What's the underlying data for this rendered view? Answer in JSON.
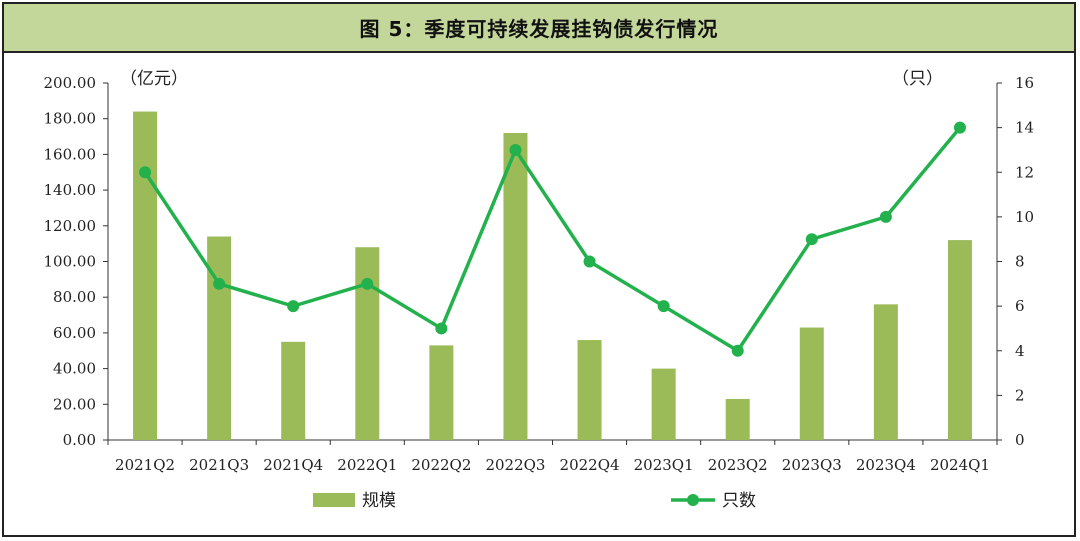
{
  "title": "图 5：季度可持续发展挂钩债发行情况",
  "chart_data": {
    "type": "bar",
    "categories": [
      "2021Q2",
      "2021Q3",
      "2021Q4",
      "2022Q1",
      "2022Q2",
      "2022Q3",
      "2022Q4",
      "2023Q1",
      "2023Q2",
      "2023Q3",
      "2023Q4",
      "2024Q1"
    ],
    "series": [
      {
        "name": "规模",
        "type": "bar",
        "axis": "left",
        "color": "#9bbb59",
        "values": [
          184,
          114,
          55,
          108,
          53,
          172,
          56,
          40,
          23,
          63,
          76,
          112
        ]
      },
      {
        "name": "只数",
        "type": "line",
        "axis": "right",
        "color": "#22b14c",
        "values": [
          12,
          7,
          6,
          7,
          5,
          13,
          8,
          6,
          4,
          9,
          10,
          14
        ]
      }
    ],
    "y_left": {
      "unit": "（亿元）",
      "ylim": [
        0,
        200
      ],
      "ticks": [
        "0.00",
        "20.00",
        "40.00",
        "60.00",
        "80.00",
        "100.00",
        "120.00",
        "140.00",
        "160.00",
        "180.00",
        "200.00"
      ]
    },
    "y_right": {
      "unit": "（只）",
      "ylim": [
        0,
        16
      ],
      "ticks": [
        "0",
        "2",
        "4",
        "6",
        "8",
        "10",
        "12",
        "14",
        "16"
      ]
    },
    "grid": false,
    "legend": "bottom"
  }
}
